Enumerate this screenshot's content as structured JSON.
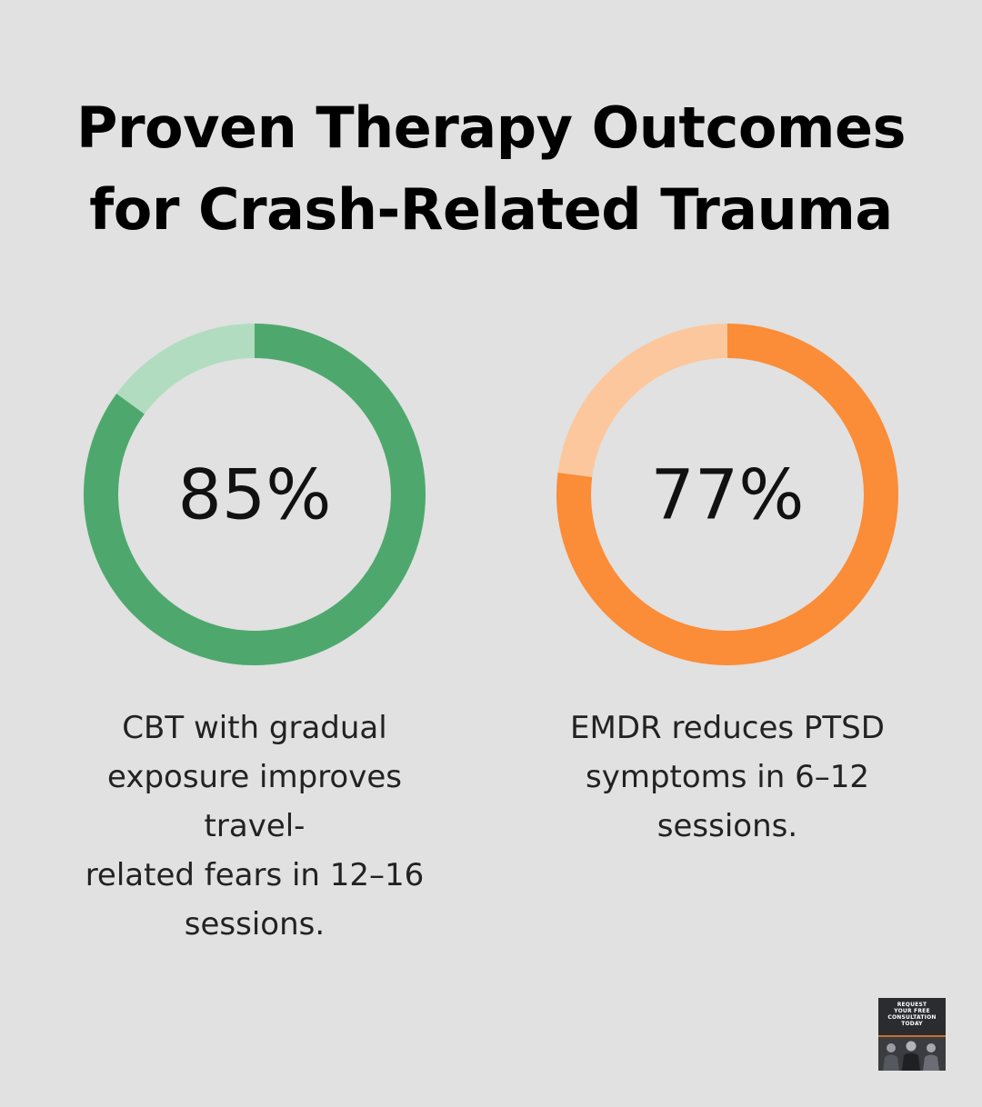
{
  "title_lines": [
    "Proven Therapy Outcomes",
    "for Crash-Related Trauma"
  ],
  "chart_data": [
    {
      "type": "pie",
      "style": "donut",
      "value": 85,
      "max": 100,
      "label": "85%",
      "caption": "CBT with gradual exposure improves travel-related fears in 12–16 sessions.",
      "caption_lines": [
        "CBT with gradual",
        "exposure improves travel-",
        "related fears in 12–16",
        "sessions."
      ],
      "colors": {
        "fill": "#4ea86d",
        "track": "#b2dcc0"
      }
    },
    {
      "type": "pie",
      "style": "donut",
      "value": 77,
      "max": 100,
      "label": "77%",
      "caption": "EMDR reduces PTSD symptoms in 6–12 sessions.",
      "caption_lines": [
        "EMDR reduces PTSD",
        "symptoms in 6–12",
        "sessions."
      ],
      "colors": {
        "fill": "#fb8c38",
        "track": "#fdc79d"
      }
    }
  ],
  "cta": {
    "lines": [
      "REQUEST",
      "YOUR FREE",
      "CONSULTATION",
      "TODAY"
    ],
    "background": "#2a2c30",
    "accent": "#c8702a"
  }
}
